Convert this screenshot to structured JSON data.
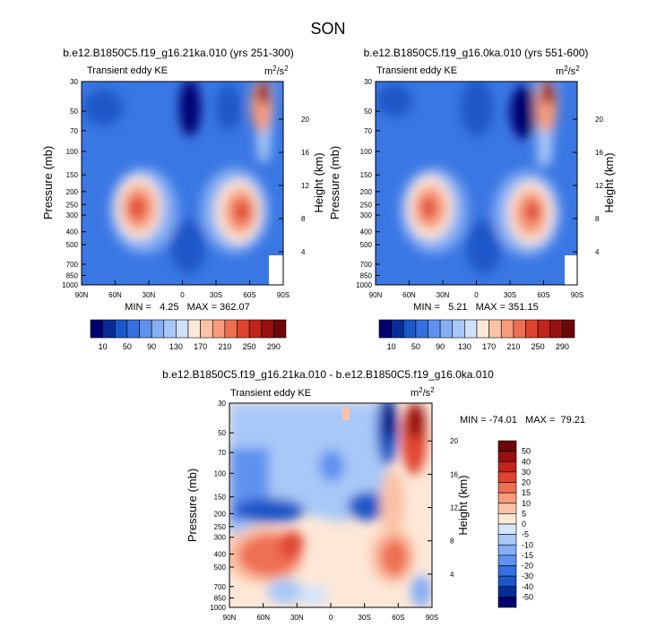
{
  "figure_title": "SON",
  "chart_data": [
    {
      "type": "heatmap",
      "title": "b.e12.B1850C5.f19_g16.21ka.010 (yrs 251-300)",
      "subtitle_left": "Transient eddy KE",
      "unit_base": "m",
      "unit_sup1": "2",
      "unit_mid": "/s",
      "unit_sup2": "2",
      "xlabel": "",
      "ylabel": "Pressure (mb)",
      "ylabel_right": "Height (km)",
      "x_ticks": [
        "90N",
        "60N",
        "30N",
        "0",
        "30S",
        "60S",
        "90S"
      ],
      "y_ticks": [
        "30",
        "50",
        "70",
        "100",
        "150",
        "200",
        "250",
        "300",
        "400",
        "500",
        "700",
        "850",
        "1000"
      ],
      "y_ticks_right": [
        "20",
        "16",
        "12",
        "8",
        "4"
      ],
      "minmax_text": "MIN =   4.25   MAX = 362.07",
      "colorbar_labels": [
        "10",
        "50",
        "90",
        "130",
        "170",
        "210",
        "250",
        "290"
      ],
      "colorbar_orientation": "horizontal",
      "features": [
        {
          "lat": -42,
          "p": 270,
          "value": 300
        },
        {
          "lat": 38,
          "p": 270,
          "value": 295
        },
        {
          "lat": -55,
          "p": 35,
          "value": 362
        }
      ],
      "min": 4.25,
      "max": 362.07
    },
    {
      "type": "heatmap",
      "title": "b.e12.B1850C5.f19_g16.0ka.010 (yrs 551-600)",
      "subtitle_left": "Transient eddy KE",
      "unit_base": "m",
      "unit_sup1": "2",
      "unit_mid": "/s",
      "unit_sup2": "2",
      "xlabel": "",
      "ylabel": "Pressure (mb)",
      "ylabel_right": "Height (km)",
      "x_ticks": [
        "90N",
        "60N",
        "30N",
        "0",
        "30S",
        "60S",
        "90S"
      ],
      "y_ticks": [
        "30",
        "50",
        "70",
        "100",
        "150",
        "200",
        "250",
        "300",
        "400",
        "500",
        "700",
        "850",
        "1000"
      ],
      "y_ticks_right": [
        "20",
        "16",
        "12",
        "8",
        "4"
      ],
      "minmax_text": "MIN =   5.21   MAX = 351.15",
      "colorbar_labels": [
        "10",
        "50",
        "90",
        "130",
        "170",
        "210",
        "250",
        "290"
      ],
      "colorbar_orientation": "horizontal",
      "features": [
        {
          "lat": -45,
          "p": 280,
          "value": 290
        },
        {
          "lat": 40,
          "p": 260,
          "value": 280
        },
        {
          "lat": -58,
          "p": 35,
          "value": 351
        }
      ],
      "min": 5.21,
      "max": 351.15
    },
    {
      "type": "heatmap",
      "title": "b.e12.B1850C5.f19_g16.21ka.010 - b.e12.B1850C5.f19_g16.0ka.010",
      "subtitle_left": "Transient eddy KE",
      "unit_base": "m",
      "unit_sup1": "2",
      "unit_mid": "/s",
      "unit_sup2": "2",
      "xlabel": "",
      "ylabel": "Pressure (mb)",
      "ylabel_right": "Height (km)",
      "x_ticks": [
        "90N",
        "60N",
        "30N",
        "0",
        "30S",
        "60S",
        "90S"
      ],
      "y_ticks": [
        "30",
        "50",
        "70",
        "100",
        "150",
        "200",
        "250",
        "300",
        "400",
        "500",
        "700",
        "850",
        "1000"
      ],
      "y_ticks_right": [
        "20",
        "16",
        "12",
        "8",
        "4"
      ],
      "minmax_text": "MIN = -74.01   MAX =  79.21",
      "colorbar_labels": [
        "50",
        "40",
        "30",
        "20",
        "15",
        "10",
        "5",
        "0",
        "-5",
        "-10",
        "-15",
        "-20",
        "-30",
        "-40",
        "-50"
      ],
      "colorbar_orientation": "vertical",
      "features": [
        {
          "lat": -65,
          "p": 40,
          "value": 79
        },
        {
          "lat": -50,
          "p": 40,
          "value": -74
        },
        {
          "lat": 45,
          "p": 420,
          "value": 45
        },
        {
          "lat": -50,
          "p": 480,
          "value": 50
        },
        {
          "lat": 50,
          "p": 200,
          "value": -35
        },
        {
          "lat": -40,
          "p": 180,
          "value": -40
        }
      ],
      "min": -74.01,
      "max": 79.21
    }
  ],
  "colors": {
    "abs_scale": [
      "#00006f",
      "#062c9a",
      "#1a57c8",
      "#3470e0",
      "#5e91f0",
      "#86aef4",
      "#a8c8f8",
      "#cfe1fb",
      "#fde8d8",
      "#fbc2a6",
      "#f79b7c",
      "#ef6f52",
      "#e0442f",
      "#c0241a",
      "#96100f",
      "#6e0808"
    ],
    "diff_scale": [
      "#00006f",
      "#062c9a",
      "#1a57c8",
      "#3470e0",
      "#5e91f0",
      "#86aef4",
      "#a8c8f8",
      "#d4e4fb",
      "#fde8d8",
      "#fbc2a6",
      "#f79b7c",
      "#ef6f52",
      "#e0442f",
      "#c0241a",
      "#96100f",
      "#6e0808"
    ]
  }
}
